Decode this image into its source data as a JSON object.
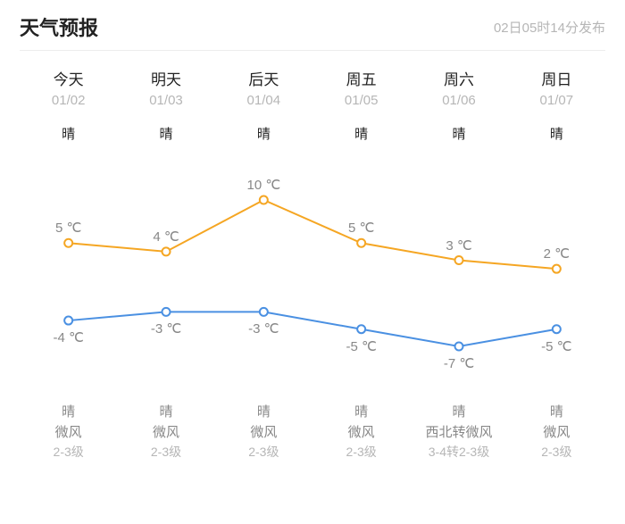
{
  "header": {
    "title": "天气预报",
    "publish": "02日05时14分发布"
  },
  "days": [
    {
      "name": "今天",
      "date": "01/02",
      "cond_day": "晴",
      "cond_night": "晴",
      "wind_dir": "微风",
      "wind_level": "2-3级"
    },
    {
      "name": "明天",
      "date": "01/03",
      "cond_day": "晴",
      "cond_night": "晴",
      "wind_dir": "微风",
      "wind_level": "2-3级"
    },
    {
      "name": "后天",
      "date": "01/04",
      "cond_day": "晴",
      "cond_night": "晴",
      "wind_dir": "微风",
      "wind_level": "2-3级"
    },
    {
      "name": "周五",
      "date": "01/05",
      "cond_day": "晴",
      "cond_night": "晴",
      "wind_dir": "微风",
      "wind_level": "2-3级"
    },
    {
      "name": "周六",
      "date": "01/06",
      "cond_day": "晴",
      "cond_night": "晴",
      "wind_dir": "西北转微风",
      "wind_level": "3-4转2-3级"
    },
    {
      "name": "周日",
      "date": "01/07",
      "cond_day": "晴",
      "cond_night": "晴",
      "wind_dir": "微风",
      "wind_level": "2-3级"
    }
  ],
  "chart": {
    "type": "line",
    "high_values": [
      5,
      4,
      10,
      5,
      3,
      2
    ],
    "low_values": [
      -4,
      -3,
      -3,
      -5,
      -7,
      -5
    ],
    "high_labels": [
      "5 ℃",
      "4 ℃",
      "10 ℃",
      "5 ℃",
      "3 ℃",
      "2 ℃"
    ],
    "low_labels": [
      "-4 ℃",
      "-3 ℃",
      "-3 ℃",
      "-5 ℃",
      "-7 ℃",
      "-5 ℃"
    ],
    "high_color": "#f5a623",
    "low_color": "#4a90e2",
    "line_width": 2,
    "marker_radius": 4.5,
    "marker_fill": "#ffffff",
    "background": "#ffffff",
    "label_color": "#888888",
    "label_fontsize": 15,
    "value_min": -7,
    "value_max": 10,
    "plot_top_pad": 28,
    "plot_bottom_pad": 28,
    "high_label_offset": -26,
    "low_label_offset": 10
  }
}
